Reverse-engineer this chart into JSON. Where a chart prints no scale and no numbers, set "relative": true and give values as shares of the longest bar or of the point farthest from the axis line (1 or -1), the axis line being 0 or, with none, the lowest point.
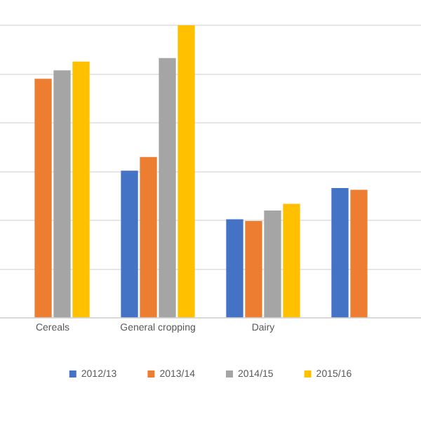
{
  "chart_data": {
    "type": "bar",
    "relative": true,
    "categories": [
      "Cereals",
      "General cropping",
      "Dairy",
      null
    ],
    "series": [
      {
        "name": "2012/13",
        "color": "#4472c4",
        "values": [
          null,
          0.503,
          0.337,
          0.444
        ]
      },
      {
        "name": "2013/14",
        "color": "#ed7d31",
        "values": [
          0.817,
          0.55,
          0.331,
          0.438
        ]
      },
      {
        "name": "2014/15",
        "color": "#a5a5a5",
        "values": [
          0.846,
          0.888,
          0.367,
          null
        ]
      },
      {
        "name": "2015/16",
        "color": "#ffc000",
        "values": [
          0.876,
          1,
          0.39,
          null
        ]
      }
    ],
    "grid": "y",
    "legend": "bottom"
  }
}
